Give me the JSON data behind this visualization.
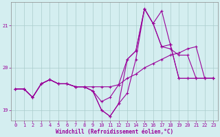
{
  "xlabel": "Windchill (Refroidissement éolien,°C)",
  "background_color": "#d4eef0",
  "grid_color": "#aacccc",
  "line_color": "#990099",
  "xlim": [
    -0.5,
    23.5
  ],
  "ylim": [
    18.75,
    21.55
  ],
  "yticks": [
    19,
    20,
    21
  ],
  "xticks": [
    0,
    1,
    2,
    3,
    4,
    5,
    6,
    7,
    8,
    9,
    10,
    11,
    12,
    13,
    14,
    15,
    16,
    17,
    18,
    19,
    20,
    21,
    22,
    23
  ],
  "series": [
    {
      "x": [
        0,
        1,
        2,
        3,
        4,
        5,
        6,
        7,
        8,
        9,
        10,
        11,
        12,
        13,
        14,
        15,
        16,
        17,
        18,
        19,
        20,
        21,
        22,
        23
      ],
      "y": [
        19.5,
        19.5,
        19.3,
        19.62,
        19.72,
        19.62,
        19.62,
        19.55,
        19.55,
        19.55,
        19.55,
        19.55,
        19.6,
        19.75,
        19.85,
        20.0,
        20.1,
        20.2,
        20.3,
        20.35,
        20.45,
        20.5,
        19.75,
        19.75
      ]
    },
    {
      "x": [
        0,
        1,
        2,
        3,
        4,
        5,
        6,
        7,
        8,
        9,
        10,
        11,
        12,
        13,
        14,
        15,
        16,
        17,
        18,
        19,
        20,
        21,
        22,
        23
      ],
      "y": [
        19.5,
        19.5,
        19.3,
        19.62,
        19.72,
        19.62,
        19.62,
        19.55,
        19.55,
        19.45,
        19.2,
        19.3,
        19.6,
        20.2,
        20.4,
        21.4,
        21.05,
        20.5,
        20.45,
        20.3,
        20.3,
        19.75,
        19.75,
        19.75
      ]
    },
    {
      "x": [
        0,
        1,
        2,
        3,
        4,
        5,
        6,
        7,
        8,
        9,
        10,
        11,
        12,
        13,
        14,
        15,
        16,
        17,
        18,
        19,
        20,
        21,
        22,
        23
      ],
      "y": [
        19.5,
        19.5,
        19.3,
        19.62,
        19.72,
        19.62,
        19.62,
        19.55,
        19.55,
        19.45,
        19.0,
        18.85,
        19.15,
        19.4,
        20.2,
        21.4,
        21.05,
        21.35,
        20.55,
        19.75,
        19.75,
        19.75,
        19.75,
        19.75
      ]
    },
    {
      "x": [
        0,
        1,
        2,
        3,
        4,
        5,
        6,
        7,
        8,
        9,
        10,
        11,
        12,
        13,
        14,
        15,
        16,
        17,
        18,
        19,
        20,
        21,
        22,
        23
      ],
      "y": [
        19.5,
        19.5,
        19.3,
        19.62,
        19.72,
        19.62,
        19.62,
        19.55,
        19.55,
        19.45,
        19.0,
        18.85,
        19.15,
        20.2,
        20.4,
        21.4,
        21.05,
        20.5,
        20.55,
        19.75,
        19.75,
        19.75,
        19.75,
        19.75
      ]
    }
  ]
}
